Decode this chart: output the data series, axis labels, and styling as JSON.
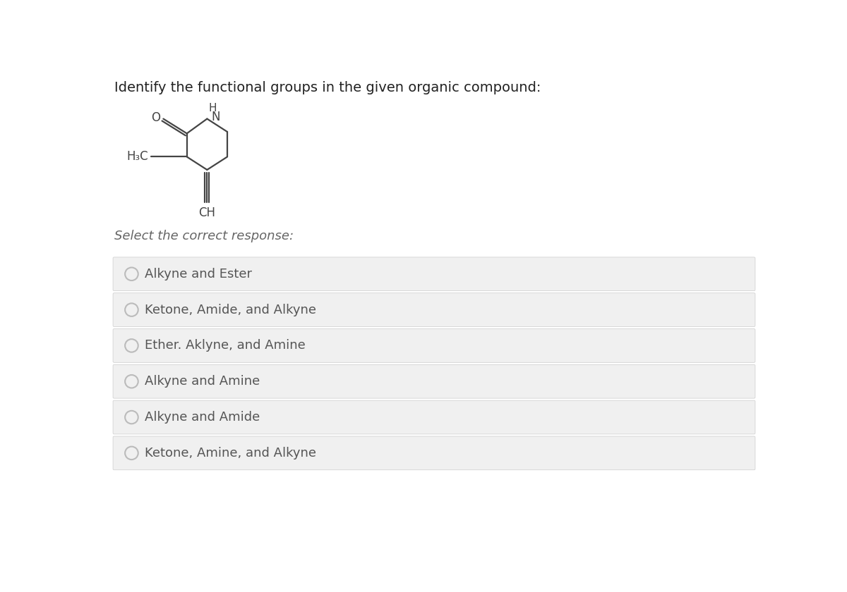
{
  "title": "Identify the functional groups in the given organic compound:",
  "subtitle": "Select the correct response:",
  "options": [
    "Alkyne and Ester",
    "Ketone, Amide, and Alkyne",
    "Ether. Aklyne, and Amine",
    "Alkyne and Amine",
    "Alkyne and Amide",
    "Ketone, Amine, and Alkyne"
  ],
  "bg_color": "#ffffff",
  "option_bg_color": "#f0f0f0",
  "option_text_color": "#555555",
  "title_color": "#222222",
  "subtitle_color": "#666666",
  "circle_color": "#bbbbbb",
  "bond_color": "#444444",
  "title_fontsize": 14,
  "subtitle_fontsize": 13,
  "option_fontsize": 13
}
